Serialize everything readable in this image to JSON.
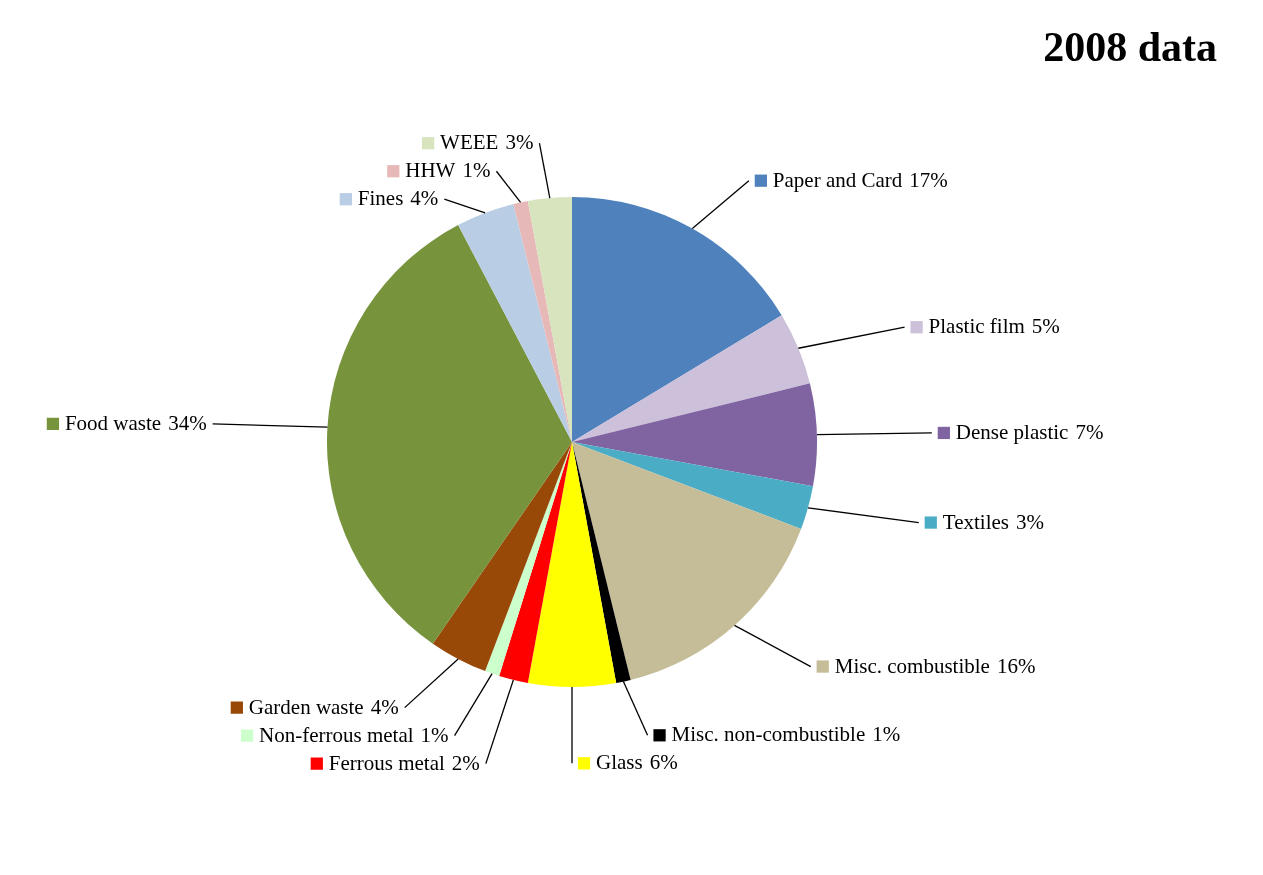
{
  "chart_data": {
    "type": "pie",
    "title": "2008 data",
    "categories": [
      "Paper and Card",
      "Plastic film",
      "Dense plastic",
      "Textiles",
      "Misc. combustible",
      "Misc. non-combustible",
      "Glass",
      "Ferrous metal",
      "Non-ferrous metal",
      "Garden waste",
      "Food waste",
      "Fines",
      "HHW",
      "WEEE"
    ],
    "values": [
      17,
      5,
      7,
      3,
      16,
      1,
      6,
      2,
      1,
      4,
      34,
      4,
      1,
      3
    ],
    "value_labels": [
      "17%",
      "5%",
      "7%",
      "3%",
      "16%",
      "1%",
      "6%",
      "2%",
      "1%",
      "4%",
      "34%",
      "4%",
      "1%",
      "3%"
    ],
    "legend": "right",
    "colors": [
      "#4f81bd",
      "#ccc0da",
      "#8064a2",
      "#4bacc6",
      "#c4bd97",
      "#000000",
      "#ffff00",
      "#ff0000",
      "#ccffcc",
      "#984807",
      "#77933c",
      "#b9cde5",
      "#e6b9b8",
      "#d7e4bd"
    ]
  }
}
